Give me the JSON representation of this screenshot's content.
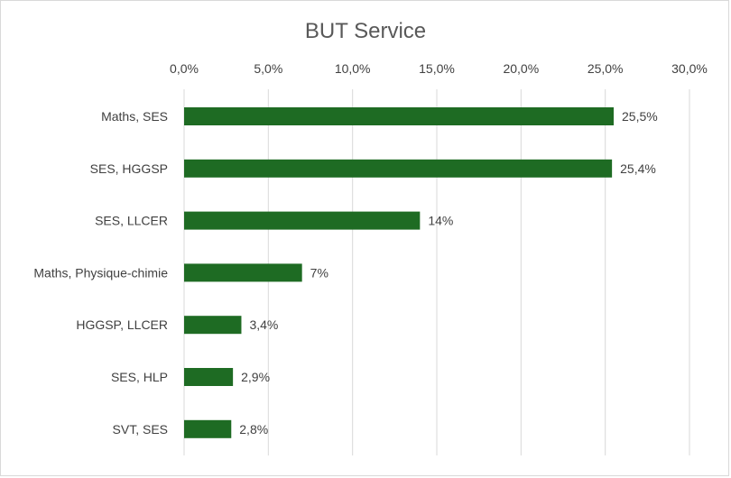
{
  "chart_data": {
    "type": "bar",
    "orientation": "horizontal",
    "title": "BUT Service",
    "categories": [
      "Maths, SES",
      "SES, HGGSP",
      "SES, LLCER",
      "Maths, Physique-chimie",
      "HGGSP, LLCER",
      "SES, HLP",
      "SVT, SES"
    ],
    "values": [
      25.5,
      25.4,
      14,
      7,
      3.4,
      2.9,
      2.8
    ],
    "data_labels": [
      "25,5%",
      "25,4%",
      "14%",
      "7%",
      "3,4%",
      "2,9%",
      "2,8%"
    ],
    "xlim": [
      0,
      30
    ],
    "x_ticks": [
      0,
      5,
      10,
      15,
      20,
      25,
      30
    ],
    "x_tick_labels": [
      "0,0%",
      "5,0%",
      "10,0%",
      "15,0%",
      "20,0%",
      "25,0%",
      "30,0%"
    ],
    "x_axis_position": "top",
    "grid": true,
    "bar_color": "#1e6b23",
    "grid_color": "#d9d9d9"
  }
}
